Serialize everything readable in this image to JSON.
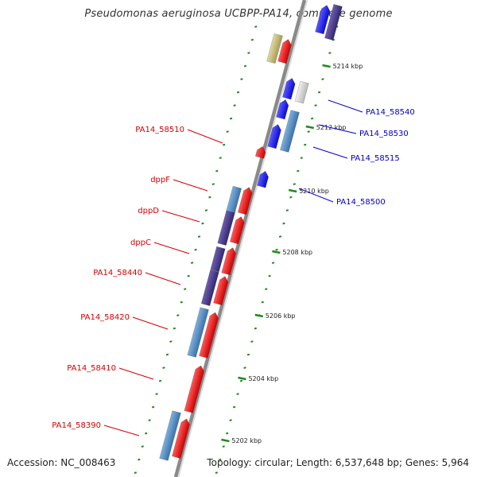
{
  "title": "Pseudomonas aeruginosa UCBPP-PA14, complete genome",
  "accession": "Accession: NC_008463",
  "topology": "Topology: circular; Length: 6,537,648 bp; Genes: 5,964",
  "colors": {
    "red_label": "#d40000",
    "blue_label": "#0000c8",
    "tick": "#1e8a1e",
    "backbone": "#8a8a8a",
    "gene_red": "#ee0000",
    "gene_blue": "#1a1aee",
    "gene_steel": "#4a86c0",
    "gene_purple": "#4a3a8a",
    "gene_khaki": "#c2b878",
    "gene_lightgray": "#d6d6d6"
  },
  "scale_ticks": [
    {
      "label": "5202 kbp"
    },
    {
      "label": "5204 kbp"
    },
    {
      "label": "5206 kbp"
    },
    {
      "label": "5208 kbp"
    },
    {
      "label": "5210 kbp"
    },
    {
      "label": "5212 kbp"
    },
    {
      "label": "5214 kbp"
    }
  ],
  "gene_labels": [
    {
      "name": "PA14_58510",
      "color": "red"
    },
    {
      "name": "dppF",
      "color": "red"
    },
    {
      "name": "dppD",
      "color": "red"
    },
    {
      "name": "dppC",
      "color": "red"
    },
    {
      "name": "PA14_58440",
      "color": "red"
    },
    {
      "name": "PA14_58420",
      "color": "red"
    },
    {
      "name": "PA14_58410",
      "color": "red"
    },
    {
      "name": "PA14_58390",
      "color": "red"
    },
    {
      "name": "PA14_58540",
      "color": "blue"
    },
    {
      "name": "PA14_58530",
      "color": "blue"
    },
    {
      "name": "PA14_58515",
      "color": "blue"
    },
    {
      "name": "PA14_58500",
      "color": "blue"
    }
  ]
}
